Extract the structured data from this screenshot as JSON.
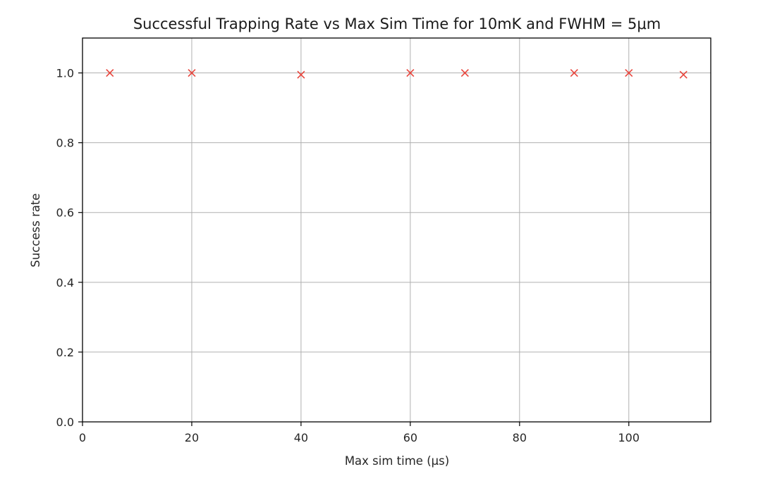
{
  "chart_data": {
    "type": "scatter",
    "title": "Successful Trapping Rate vs Max Sim Time for 10mK and FWHM = 5μm",
    "xlabel": "Max sim time (μs)",
    "ylabel": "Success rate",
    "xlim": [
      0,
      115
    ],
    "ylim": [
      0.0,
      1.1
    ],
    "xticks": [
      0,
      20,
      40,
      60,
      80,
      100
    ],
    "yticks": [
      0.0,
      0.2,
      0.4,
      0.6,
      0.8,
      1.0
    ],
    "xtick_labels": [
      "0",
      "20",
      "40",
      "60",
      "80",
      "100"
    ],
    "ytick_labels": [
      "0.0",
      "0.2",
      "0.4",
      "0.6",
      "0.8",
      "1.0"
    ],
    "grid": true,
    "marker": "x",
    "marker_color": "#e8453c",
    "grid_color": "#b0b0b0",
    "series": [
      {
        "x": [
          5,
          20,
          40,
          60,
          70,
          90,
          100,
          110
        ],
        "y": [
          1.0,
          1.0,
          0.995,
          1.0,
          1.0,
          1.0,
          1.0,
          0.995
        ]
      }
    ]
  }
}
